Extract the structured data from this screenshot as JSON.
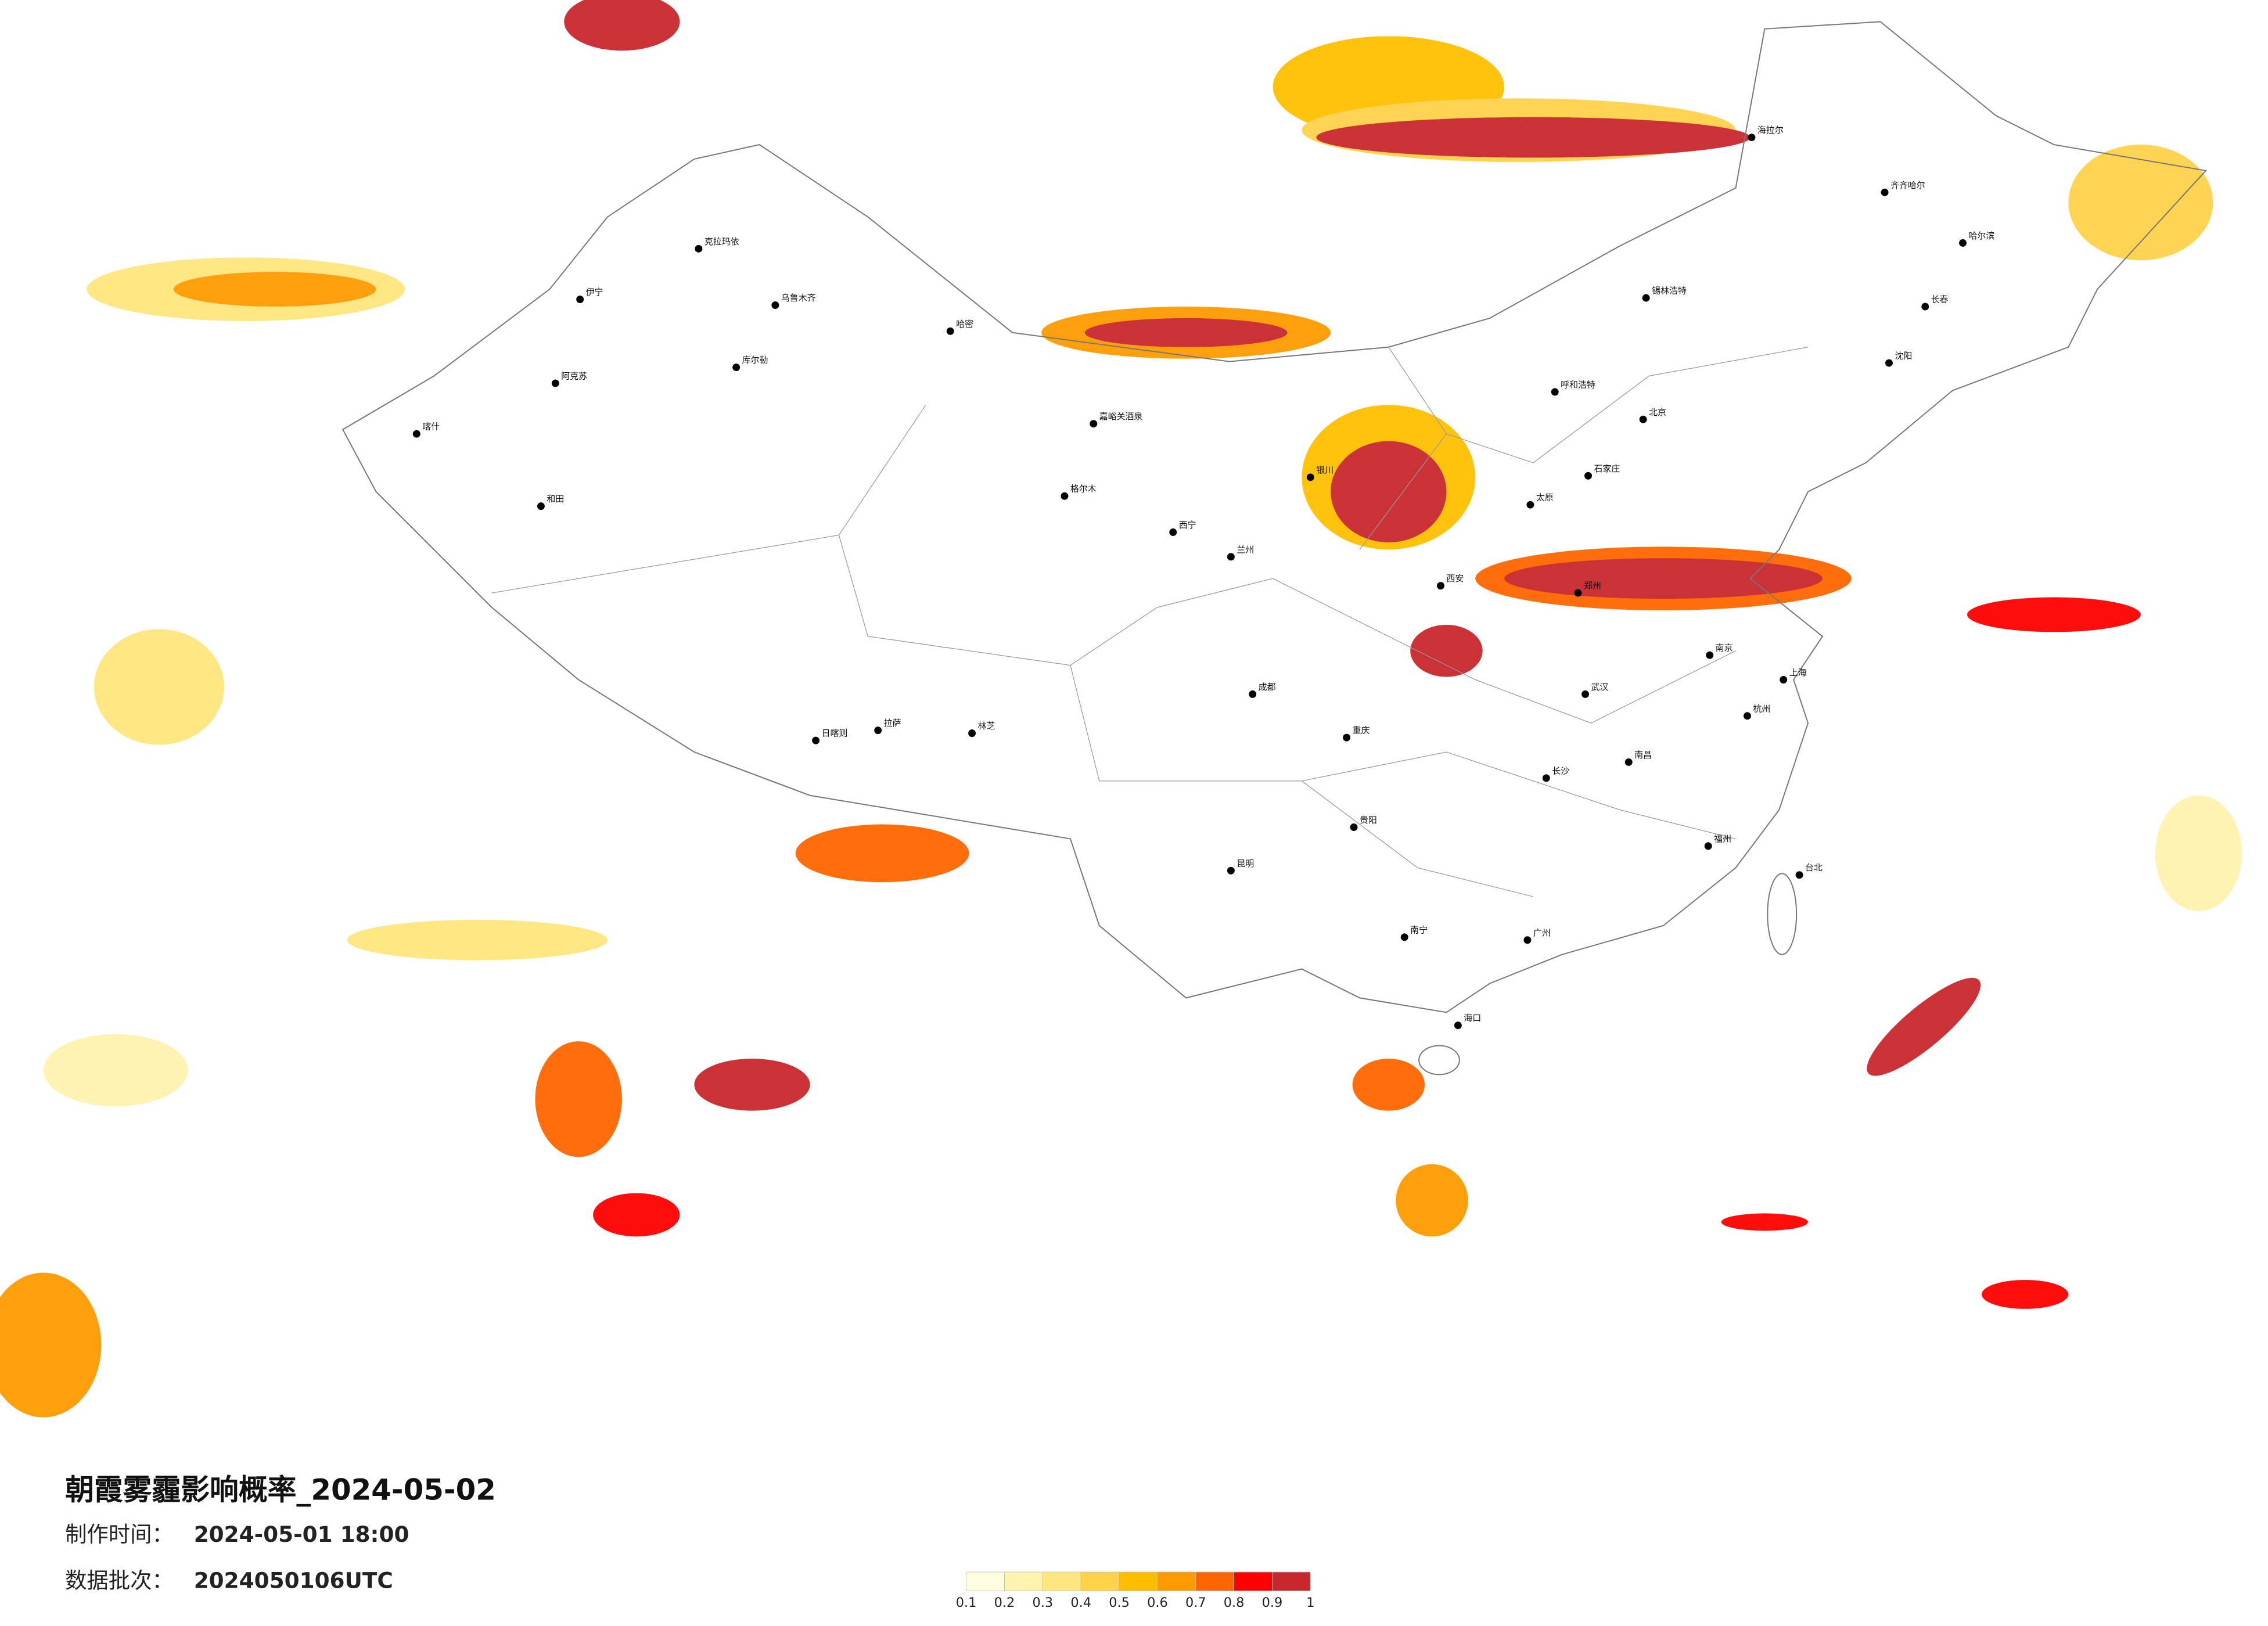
{
  "title": "朝霞雾霾影响概率_2024-05-02",
  "production_label": "制作时间：",
  "production_time": "2024-05-01 18:00",
  "batch_label": "数据批次：",
  "batch": "2024050106UTC",
  "legend": {
    "ticks": [
      0.1,
      0.2,
      0.3,
      0.4,
      0.5,
      0.6,
      0.7,
      0.8,
      0.9,
      1
    ],
    "colors": [
      "#fffbe0",
      "#fff3b0",
      "#ffe680",
      "#ffd24a",
      "#ffbf00",
      "#ff9a00",
      "#ff6600",
      "#ff0000",
      "#c8282d"
    ]
  },
  "cities": [
    "乌鲁木齐",
    "克拉玛依",
    "伊宁",
    "阿克苏",
    "喀什",
    "和田",
    "库尔勒",
    "哈密",
    "嘉峪关酒泉",
    "格尔木",
    "拉萨",
    "日喀则",
    "林芝",
    "北京",
    "石家庄",
    "太原",
    "呼和浩特",
    "郑州",
    "西安",
    "武汉",
    "长沙",
    "南昌",
    "南京",
    "上海",
    "杭州",
    "福州",
    "广州",
    "南宁",
    "昆明",
    "贵阳",
    "成都",
    "重庆",
    "兰州",
    "西宁",
    "银川",
    "哈尔滨",
    "长春",
    "沈阳",
    "齐齐哈尔",
    "海拉尔",
    "锡林浩特",
    "台北",
    "海口"
  ]
}
